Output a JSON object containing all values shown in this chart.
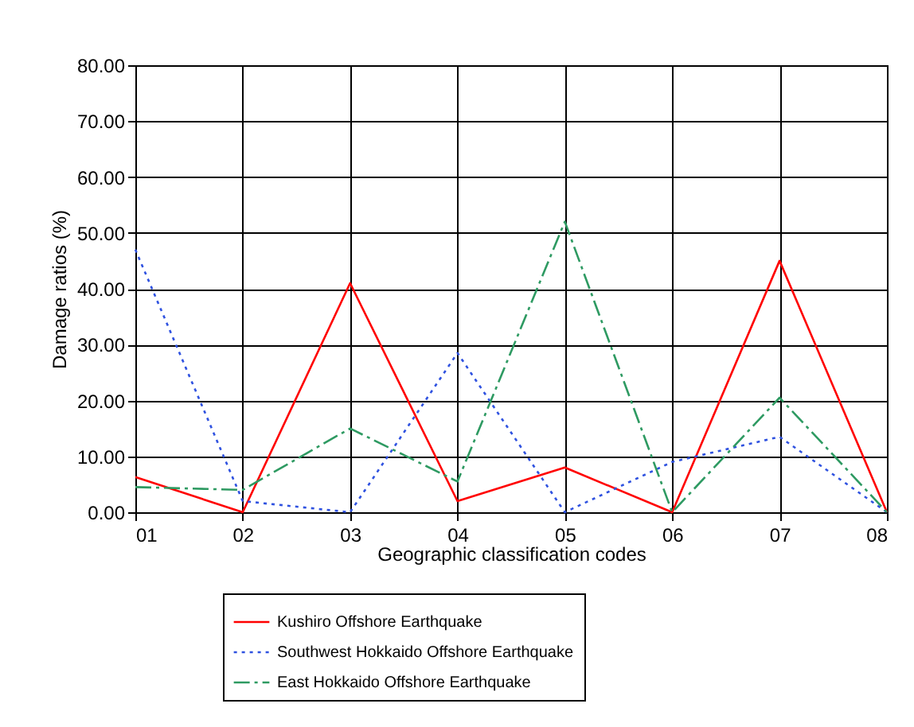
{
  "chart_data": {
    "type": "line",
    "xlabel": "Geographic classification codes",
    "ylabel": "Damage ratios (%)",
    "categories": [
      "01",
      "02",
      "03",
      "04",
      "05",
      "06",
      "07",
      "08"
    ],
    "series": [
      {
        "name": "Kushiro Offshore Earthquake",
        "color": "#ff0000",
        "line_style": "solid",
        "values": [
          6.3,
          0,
          41,
          2,
          8,
          0,
          45,
          0
        ]
      },
      {
        "name": "Southwest Hokkaido Offshore Earthquake",
        "color": "#2f52e0",
        "line_style": "dotted",
        "values": [
          47,
          2,
          0,
          28.5,
          0,
          9,
          13.5,
          0
        ]
      },
      {
        "name": "East Hokkaido Offshore Earthquake",
        "color": "#2e9a62",
        "line_style": "dashed",
        "values": [
          4.5,
          4,
          15,
          5.5,
          52,
          0,
          20.5,
          0
        ]
      }
    ],
    "ylim": [
      0,
      80
    ],
    "yticks": [
      {
        "value": 0,
        "label": "0.00"
      },
      {
        "value": 10,
        "label": "10.00"
      },
      {
        "value": 20,
        "label": "20.00"
      },
      {
        "value": 30,
        "label": "30.00"
      },
      {
        "value": 40,
        "label": "40.00"
      },
      {
        "value": 50,
        "label": "50.00"
      },
      {
        "value": 60,
        "label": "60.00"
      },
      {
        "value": 70,
        "label": "70.00"
      },
      {
        "value": 80,
        "label": "80.00"
      }
    ],
    "grid": true,
    "legend": "bottom",
    "marker": "none"
  }
}
